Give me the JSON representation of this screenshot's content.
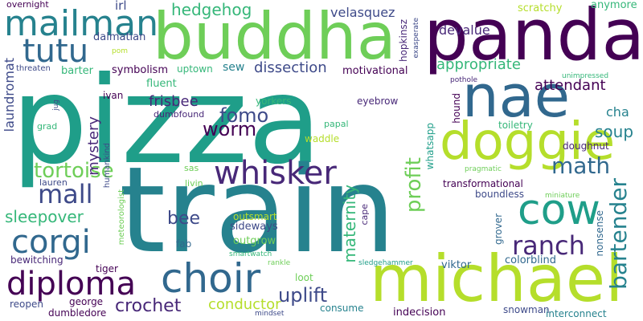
{
  "words": [
    {
      "text": "pizza",
      "color": "#1f9e89"
    },
    {
      "text": "train",
      "color": "#26828e"
    },
    {
      "text": "buddha",
      "color": "#6ece58"
    },
    {
      "text": "panda",
      "color": "#440154"
    },
    {
      "text": "michael",
      "color": "#b5de2b"
    },
    {
      "text": "nae",
      "color": "#31688e"
    },
    {
      "text": "doggie",
      "color": "#b5de2b"
    },
    {
      "text": "mailman",
      "color": "#26828e"
    },
    {
      "text": "whisker",
      "color": "#482878"
    },
    {
      "text": "choir",
      "color": "#31688e"
    },
    {
      "text": "diploma",
      "color": "#440154"
    },
    {
      "text": "cow",
      "color": "#1f9e89"
    },
    {
      "text": "corgi",
      "color": "#31688e"
    },
    {
      "text": "tutu",
      "color": "#31688e"
    },
    {
      "text": "mall",
      "color": "#3e4a89"
    },
    {
      "text": "ranch",
      "color": "#482878"
    },
    {
      "text": "tortoise",
      "color": "#6ece58"
    },
    {
      "text": "math",
      "color": "#31688e"
    },
    {
      "text": "bartender",
      "color": "#26828e"
    },
    {
      "text": "fomo",
      "color": "#3e4a89"
    },
    {
      "text": "worm",
      "color": "#440154"
    },
    {
      "text": "crochet",
      "color": "#482878"
    },
    {
      "text": "uplift",
      "color": "#3e4a89"
    },
    {
      "text": "profit",
      "color": "#6ece58"
    },
    {
      "text": "sleepover",
      "color": "#35b779"
    },
    {
      "text": "hedgehog",
      "color": "#35b779"
    },
    {
      "text": "attendant",
      "color": "#440154"
    },
    {
      "text": "appropriate",
      "color": "#35b779"
    },
    {
      "text": "dissection",
      "color": "#3e4a89"
    },
    {
      "text": "bee",
      "color": "#3e4a89"
    },
    {
      "text": "soup",
      "color": "#26828e"
    },
    {
      "text": "conductor",
      "color": "#b5de2b"
    },
    {
      "text": "maternity",
      "color": "#35b779"
    },
    {
      "text": "frisbee",
      "color": "#482878"
    },
    {
      "text": "mystery",
      "color": "#482878"
    },
    {
      "text": "laundromat",
      "color": "#3e4a89"
    },
    {
      "text": "cha",
      "color": "#26828e"
    },
    {
      "text": "velasquez",
      "color": "#3e4a89"
    },
    {
      "text": "devalue",
      "color": "#482878"
    },
    {
      "text": "irl",
      "color": "#3e4a89"
    },
    {
      "text": "dalmatian",
      "color": "#3e4a89"
    },
    {
      "text": "scratchy",
      "color": "#b5de2b"
    },
    {
      "text": "anymore",
      "color": "#35b779"
    },
    {
      "text": "overnight",
      "color": "#440154"
    },
    {
      "text": "hopkinsz",
      "color": "#482878"
    },
    {
      "text": "exasperate",
      "color": "#3e4a89"
    },
    {
      "text": "pom",
      "color": "#b5de2b"
    },
    {
      "text": "threaten",
      "color": "#3e4a89"
    },
    {
      "text": "barter",
      "color": "#35b779"
    },
    {
      "text": "symbolism",
      "color": "#440154"
    },
    {
      "text": "uptown",
      "color": "#35b779"
    },
    {
      "text": "sew",
      "color": "#26828e"
    },
    {
      "text": "motivational",
      "color": "#440154"
    },
    {
      "text": "fluent",
      "color": "#35b779"
    },
    {
      "text": "unimpressed",
      "color": "#35b779"
    },
    {
      "text": "pothole",
      "color": "#482878"
    },
    {
      "text": "ivan",
      "color": "#440154"
    },
    {
      "text": "yorkers",
      "color": "#35b779"
    },
    {
      "text": "eyebrow",
      "color": "#482878"
    },
    {
      "text": "hound",
      "color": "#440154"
    },
    {
      "text": "whatsapp",
      "color": "#1f9e89"
    },
    {
      "text": "doughnut",
      "color": "#482878"
    },
    {
      "text": "toiletry",
      "color": "#35b779"
    },
    {
      "text": "jug",
      "color": "#3e4a89"
    },
    {
      "text": "grad",
      "color": "#35b779"
    },
    {
      "text": "dumbfound",
      "color": "#482878"
    },
    {
      "text": "papal",
      "color": "#35b779"
    },
    {
      "text": "waddle",
      "color": "#b5de2b"
    },
    {
      "text": "humankind",
      "color": "#3e4a89"
    },
    {
      "text": "sas",
      "color": "#6ece58"
    },
    {
      "text": "livin",
      "color": "#6ece58"
    },
    {
      "text": "lauren",
      "color": "#3e4a89"
    },
    {
      "text": "pragmatic",
      "color": "#6ece58"
    },
    {
      "text": "transformational",
      "color": "#440154"
    },
    {
      "text": "boundless",
      "color": "#3e4a89"
    },
    {
      "text": "miniature",
      "color": "#6ece58"
    },
    {
      "text": "meteorologist",
      "color": "#6ece58"
    },
    {
      "text": "cape",
      "color": "#482878"
    },
    {
      "text": "outsmart",
      "color": "#b5de2b"
    },
    {
      "text": "sideways",
      "color": "#3e4a89"
    },
    {
      "text": "outgrow",
      "color": "#6ece58"
    },
    {
      "text": "smartwatch",
      "color": "#35b779"
    },
    {
      "text": "fab",
      "color": "#31688e"
    },
    {
      "text": "grover",
      "color": "#31688e"
    },
    {
      "text": "nonsense",
      "color": "#31688e"
    },
    {
      "text": "colorblind",
      "color": "#31688e"
    },
    {
      "text": "bewitching",
      "color": "#482878"
    },
    {
      "text": "tiger",
      "color": "#440154"
    },
    {
      "text": "rankle",
      "color": "#6ece58"
    },
    {
      "text": "sledgehammer",
      "color": "#1f9e89"
    },
    {
      "text": "viktor",
      "color": "#31688e"
    },
    {
      "text": "loot",
      "color": "#6ece58"
    },
    {
      "text": "reopen",
      "color": "#3e4a89"
    },
    {
      "text": "george",
      "color": "#440154"
    },
    {
      "text": "dumbledore",
      "color": "#440154"
    },
    {
      "text": "consume",
      "color": "#26828e"
    },
    {
      "text": "mindset",
      "color": "#3e4a89"
    },
    {
      "text": "indecision",
      "color": "#440154"
    },
    {
      "text": "snowman",
      "color": "#3e4a89"
    },
    {
      "text": "interconnect",
      "color": "#26828e"
    }
  ]
}
